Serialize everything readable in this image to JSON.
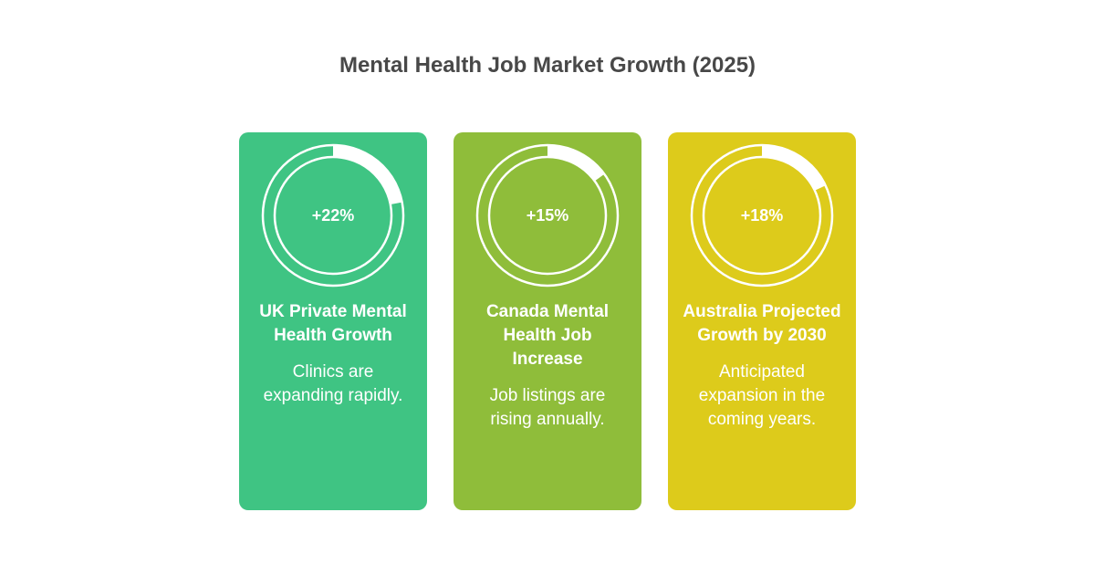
{
  "title": "Mental Health Job Market Growth (2025)",
  "cards": [
    {
      "value_label": "+22%",
      "value": 22,
      "heading": "UK Private Mental Health Growth",
      "description": "Clinics are expanding rapidly.",
      "color": "#3fc483"
    },
    {
      "value_label": "+15%",
      "value": 15,
      "heading": "Canada Mental Health Job Increase",
      "description": "Job listings are rising annually.",
      "color": "#8fbd3a"
    },
    {
      "value_label": "+18%",
      "value": 18,
      "heading": "Australia Projected Growth by 2030",
      "description": "Anticipated expansion in the coming years.",
      "color": "#ddcb1b"
    }
  ]
}
